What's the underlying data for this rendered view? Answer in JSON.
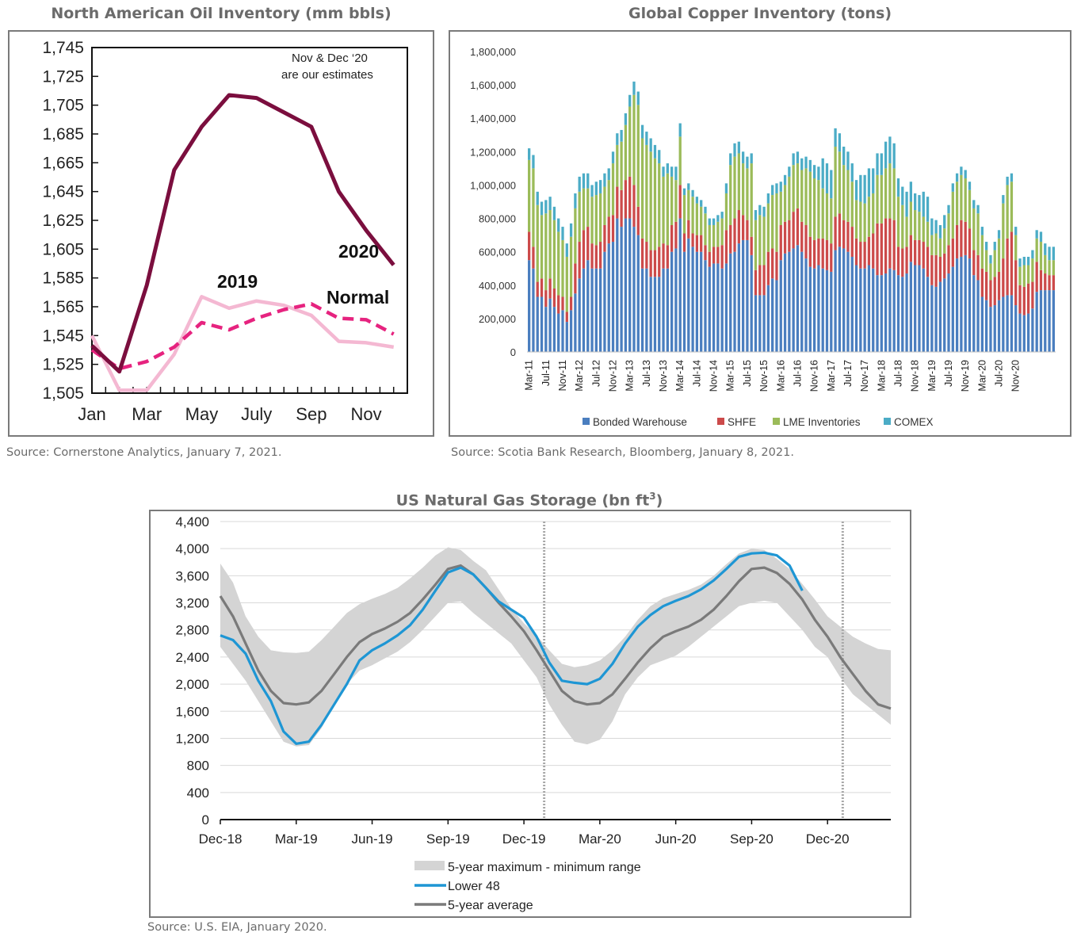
{
  "panels": {
    "oil": {
      "title": "North American Oil Inventory (mm bbls)",
      "source": "Source: Cornerstone Analytics, January 7, 2021."
    },
    "copper": {
      "title": "Global Copper Inventory (tons)",
      "source": "Source: Scotia Bank Research, Bloomberg, January 8, 2021."
    },
    "gas": {
      "title": "US Natural Gas Storage (bn ft",
      "title_sup": "3",
      "title_end": ")",
      "source": "Source: U.S. EIA, January 2020."
    }
  },
  "chart_data": [
    {
      "id": "oil",
      "type": "line",
      "title": "North American Oil Inventory (mm bbls)",
      "xlabel": "",
      "ylabel": "",
      "x_tick_labels": [
        "Jan",
        "Mar",
        "May",
        "July",
        "Sep",
        "Nov"
      ],
      "x_tick_months": [
        1,
        3,
        5,
        7,
        9,
        11
      ],
      "months": [
        1,
        2,
        3,
        4,
        5,
        6,
        7,
        8,
        9,
        10,
        11,
        12
      ],
      "ylim": [
        1505,
        1745
      ],
      "y_ticks": [
        1505,
        1525,
        1545,
        1565,
        1585,
        1605,
        1625,
        1645,
        1665,
        1685,
        1705,
        1725,
        1745
      ],
      "y_tick_labels": [
        "1,505",
        "1,525",
        "1,545",
        "1,565",
        "1,585",
        "1,605",
        "1,625",
        "1,645",
        "1,665",
        "1,685",
        "1,705",
        "1,725",
        "1,745"
      ],
      "annotation": [
        "Nov & Dec ‘20",
        "are our estimates"
      ],
      "series": [
        {
          "name": "2020",
          "label": "2020",
          "color": "#7b0e3e",
          "style": "solid",
          "values": [
            1538,
            1520,
            1580,
            1660,
            1690,
            1712,
            1710,
            1700,
            1690,
            1645,
            1618,
            1594
          ]
        },
        {
          "name": "2019",
          "label": "2019",
          "color": "#f4b8d2",
          "style": "solid",
          "values": [
            1545,
            1507,
            1507,
            1532,
            1572,
            1564,
            1569,
            1566,
            1559,
            1541,
            1540,
            1537
          ]
        },
        {
          "name": "Normal",
          "label": "Normal",
          "color": "#e6237f",
          "style": "dashed",
          "values": [
            1535,
            1522,
            1527,
            1537,
            1554,
            1549,
            1557,
            1563,
            1567,
            1557,
            1556,
            1546
          ]
        }
      ]
    },
    {
      "id": "copper",
      "type": "bar",
      "stacked": true,
      "title": "Global Copper Inventory (tons)",
      "xlabel": "",
      "ylabel": "",
      "ylim": [
        0,
        1800000
      ],
      "y_ticks": [
        0,
        200000,
        400000,
        600000,
        800000,
        1000000,
        1200000,
        1400000,
        1600000,
        1800000
      ],
      "y_tick_labels": [
        "0",
        "200,000",
        "400,000",
        "600,000",
        "800,000",
        "1,000,000",
        "1,200,000",
        "1,400,000",
        "1,600,000",
        "1,800,000"
      ],
      "x_tick_labels": [
        "Mar-11",
        "Jul-11",
        "Nov-11",
        "Mar-12",
        "Jul-12",
        "Nov-12",
        "Mar-13",
        "Jul-13",
        "Nov-13",
        "Mar-14",
        "Jul-14",
        "Nov-14",
        "Mar-15",
        "Jul-15",
        "Nov-15",
        "Mar-16",
        "Jul-16",
        "Nov-16",
        "Mar-17",
        "Jul-17",
        "Nov-17",
        "Mar-18",
        "Jul-18",
        "Nov-18",
        "Mar-19",
        "Jul-19",
        "Nov-19",
        "Mar-20",
        "Jul-20",
        "Nov-20"
      ],
      "x_tick_every": 4,
      "start_month": "Mar-11",
      "legend_position": "bottom",
      "series": [
        {
          "name": "Bonded Warehouse",
          "color": "#4a7ebf",
          "values": [
            550,
            500,
            330,
            330,
            270,
            320,
            270,
            230,
            250,
            180,
            250,
            350,
            440,
            500,
            550,
            500,
            500,
            500,
            600,
            650,
            660,
            800,
            750,
            800,
            800,
            750,
            700,
            500,
            500,
            450,
            450,
            450,
            500,
            500,
            600,
            620,
            800,
            600,
            680,
            630,
            600,
            600,
            550,
            510,
            530,
            530,
            500,
            530,
            590,
            600,
            650,
            670,
            670,
            580,
            340,
            340,
            340,
            400,
            440,
            430,
            550,
            590,
            600,
            620,
            640,
            600,
            560,
            510,
            500,
            520,
            500,
            490,
            480,
            610,
            630,
            620,
            600,
            570,
            520,
            500,
            500,
            520,
            500,
            460,
            460,
            470,
            500,
            490,
            460,
            450,
            470,
            540,
            520,
            520,
            500,
            450,
            400,
            390,
            420,
            440,
            470,
            510,
            560,
            570,
            580,
            560,
            460,
            430,
            330,
            310,
            270,
            280,
            310,
            330,
            340,
            340,
            280,
            230,
            220,
            230,
            260,
            360,
            370,
            370,
            370,
            370
          ]
        },
        {
          "name": "SHFE",
          "color": "#cc4a4a",
          "values": [
            170,
            130,
            90,
            110,
            100,
            120,
            110,
            110,
            80,
            60,
            80,
            180,
            220,
            230,
            200,
            150,
            140,
            160,
            160,
            160,
            160,
            190,
            220,
            230,
            250,
            250,
            170,
            180,
            160,
            160,
            160,
            180,
            150,
            140,
            160,
            160,
            200,
            110,
            110,
            80,
            100,
            100,
            90,
            90,
            100,
            100,
            140,
            200,
            170,
            200,
            200,
            150,
            120,
            110,
            150,
            180,
            180,
            200,
            180,
            170,
            210,
            190,
            190,
            220,
            220,
            180,
            200,
            180,
            170,
            160,
            180,
            180,
            170,
            200,
            200,
            170,
            180,
            180,
            160,
            160,
            160,
            170,
            210,
            310,
            310,
            330,
            300,
            300,
            170,
            170,
            160,
            160,
            150,
            150,
            160,
            180,
            180,
            190,
            150,
            150,
            170,
            170,
            200,
            220,
            200,
            180,
            150,
            150,
            170,
            170,
            160,
            170,
            170,
            230,
            340,
            380,
            270,
            170,
            170,
            180,
            160,
            180,
            120,
            100,
            90,
            90
          ]
        },
        {
          "name": "LME Inventories",
          "color": "#9bbb59",
          "values": [
            430,
            470,
            460,
            380,
            460,
            410,
            410,
            380,
            340,
            330,
            360,
            330,
            300,
            250,
            230,
            280,
            300,
            290,
            230,
            220,
            310,
            250,
            290,
            330,
            420,
            540,
            610,
            600,
            580,
            590,
            550,
            500,
            400,
            430,
            290,
            250,
            290,
            230,
            180,
            220,
            190,
            170,
            190,
            160,
            130,
            150,
            160,
            220,
            360,
            370,
            340,
            310,
            310,
            440,
            300,
            300,
            290,
            290,
            320,
            350,
            200,
            220,
            260,
            280,
            270,
            310,
            340,
            390,
            370,
            350,
            300,
            280,
            270,
            420,
            370,
            330,
            310,
            270,
            230,
            240,
            230,
            240,
            240,
            290,
            290,
            300,
            330,
            310,
            300,
            260,
            180,
            200,
            180,
            170,
            150,
            150,
            120,
            130,
            110,
            150,
            190,
            280,
            260,
            270,
            260,
            230,
            250,
            250,
            200,
            130,
            100,
            160,
            200,
            330,
            320,
            300,
            150,
            110,
            130,
            110,
            140,
            140,
            170,
            110,
            90,
            90
          ]
        },
        {
          "name": "COMEX",
          "color": "#4bacc6",
          "values": [
            70,
            80,
            80,
            80,
            80,
            80,
            80,
            80,
            80,
            80,
            80,
            90,
            90,
            90,
            90,
            70,
            80,
            80,
            80,
            70,
            70,
            70,
            70,
            70,
            70,
            80,
            80,
            80,
            80,
            80,
            80,
            80,
            60,
            60,
            60,
            80,
            80,
            40,
            40,
            40,
            40,
            40,
            40,
            40,
            40,
            40,
            40,
            60,
            70,
            80,
            70,
            70,
            70,
            60,
            60,
            60,
            60,
            60,
            60,
            60,
            60,
            60,
            60,
            70,
            70,
            70,
            70,
            70,
            80,
            80,
            180,
            180,
            170,
            110,
            110,
            110,
            110,
            110,
            120,
            160,
            170,
            170,
            150,
            130,
            130,
            160,
            160,
            150,
            110,
            110,
            150,
            120,
            100,
            100,
            150,
            150,
            100,
            80,
            80,
            80,
            50,
            50,
            50,
            50,
            50,
            50,
            50,
            50,
            50,
            50,
            50,
            50,
            50,
            50,
            50,
            50,
            50,
            50,
            50,
            50,
            50,
            50,
            60,
            70,
            80,
            80
          ]
        }
      ],
      "value_unit_multiplier": 1000,
      "note": "values in thousands of tons, monthly from Mar-11 to Dec-20 (approximate readings)"
    },
    {
      "id": "gas",
      "type": "area",
      "title": "US Natural Gas Storage (bn ft³)",
      "xlabel": "",
      "ylabel": "",
      "ylim": [
        0,
        4400
      ],
      "y_ticks": [
        0,
        400,
        800,
        1200,
        1600,
        2000,
        2400,
        2800,
        3200,
        3600,
        4000,
        4400
      ],
      "y_tick_labels": [
        "0",
        "400",
        "800",
        "1,200",
        "1,600",
        "2,000",
        "2,400",
        "2,800",
        "3,200",
        "3,600",
        "4,000",
        "4,400"
      ],
      "x_tick_labels": [
        "Dec-18",
        "Mar-19",
        "Jun-19",
        "Sep-19",
        "Dec-19",
        "Mar-20",
        "Jun-20",
        "Sep-20",
        "Dec-20"
      ],
      "x_range_months": [
        0,
        26.5
      ],
      "x_tick_months": [
        0,
        3,
        6,
        9,
        12,
        15,
        18,
        21,
        24
      ],
      "vertical_markers_months": [
        12.8,
        24.6
      ],
      "grid": true,
      "legend_position": "bottom",
      "legend": [
        {
          "label": "5-year maximum - minimum range",
          "color": "#d4d4d4",
          "kind": "band"
        },
        {
          "label": "Lower 48",
          "color": "#1e96d4",
          "kind": "line"
        },
        {
          "label": "5-year average",
          "color": "#7a7a7a",
          "kind": "line"
        }
      ],
      "x_months": [
        0,
        0.5,
        1,
        1.5,
        2,
        2.5,
        3,
        3.5,
        4,
        4.5,
        5,
        5.5,
        6,
        6.5,
        7,
        7.5,
        8,
        8.5,
        9,
        9.5,
        10,
        10.5,
        11,
        11.5,
        12,
        12.5,
        13,
        13.5,
        14,
        14.5,
        15,
        15.5,
        16,
        16.5,
        17,
        17.5,
        18,
        18.5,
        19,
        19.5,
        20,
        20.5,
        21,
        21.5,
        22,
        22.5,
        23,
        23.5,
        24,
        24.5,
        25,
        25.5,
        26,
        26.5
      ],
      "series": [
        {
          "name": "5-year maximum",
          "values": [
            3780,
            3500,
            3000,
            2700,
            2500,
            2470,
            2460,
            2480,
            2650,
            2850,
            3050,
            3180,
            3260,
            3330,
            3420,
            3560,
            3720,
            3900,
            4020,
            3980,
            3820,
            3680,
            3400,
            3120,
            2900,
            2720,
            2500,
            2300,
            2250,
            2280,
            2350,
            2500,
            2700,
            2950,
            3150,
            3270,
            3330,
            3390,
            3470,
            3600,
            3770,
            3930,
            4000,
            3980,
            3850,
            3700,
            3480,
            3250,
            3000,
            2850,
            2700,
            2600,
            2520,
            2500
          ]
        },
        {
          "name": "5-year minimum",
          "values": [
            2550,
            2300,
            2050,
            1750,
            1450,
            1150,
            1080,
            1100,
            1350,
            1700,
            2000,
            2200,
            2280,
            2380,
            2480,
            2620,
            2800,
            3000,
            3200,
            3220,
            3050,
            2900,
            2750,
            2600,
            2350,
            2100,
            1700,
            1400,
            1150,
            1110,
            1180,
            1450,
            1850,
            2100,
            2280,
            2350,
            2420,
            2550,
            2700,
            2850,
            3000,
            3150,
            3200,
            3230,
            3200,
            3000,
            2800,
            2550,
            2400,
            2100,
            1850,
            1700,
            1550,
            1400
          ]
        },
        {
          "name": "5-year average",
          "color": "#7a7a7a",
          "values": [
            3300,
            3000,
            2600,
            2200,
            1900,
            1720,
            1700,
            1730,
            1900,
            2150,
            2400,
            2620,
            2740,
            2820,
            2920,
            3050,
            3250,
            3470,
            3700,
            3750,
            3620,
            3420,
            3200,
            3000,
            2780,
            2500,
            2200,
            1900,
            1750,
            1700,
            1720,
            1850,
            2080,
            2320,
            2530,
            2700,
            2780,
            2850,
            2950,
            3100,
            3300,
            3520,
            3700,
            3720,
            3640,
            3480,
            3250,
            2950,
            2700,
            2400,
            2150,
            1900,
            1700,
            1640
          ]
        },
        {
          "name": "Lower 48",
          "color": "#1e96d4",
          "values": [
            2720,
            2650,
            2450,
            2050,
            1750,
            1300,
            1120,
            1150,
            1400,
            1700,
            2000,
            2350,
            2500,
            2600,
            2720,
            2870,
            3100,
            3380,
            3650,
            3720,
            3620,
            3420,
            3220,
            3100,
            2980,
            2700,
            2320,
            2050,
            2020,
            2000,
            2080,
            2300,
            2600,
            2850,
            3020,
            3150,
            3230,
            3300,
            3400,
            3530,
            3700,
            3880,
            3930,
            3940,
            3900,
            3750,
            3380,
            null,
            null,
            null,
            null,
            null,
            null,
            null
          ]
        }
      ]
    }
  ]
}
